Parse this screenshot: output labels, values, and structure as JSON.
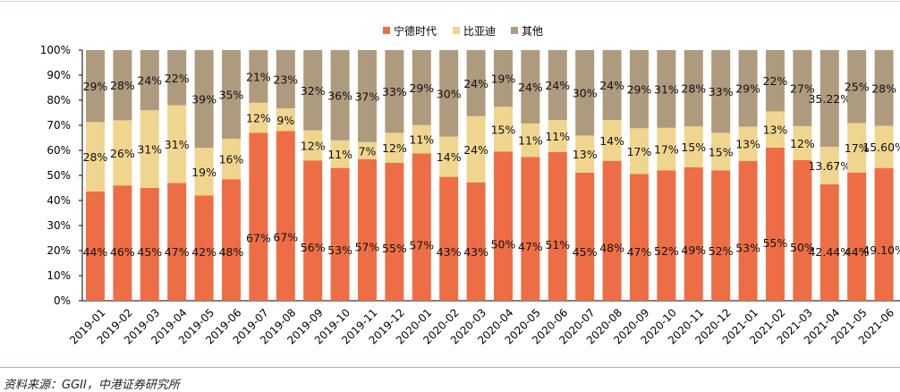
{
  "chart_data": {
    "type": "bar",
    "stacked": true,
    "categories": [
      "2019-01",
      "2019-02",
      "2019-03",
      "2019-04",
      "2019-05",
      "2019-06",
      "2019-07",
      "2019-08",
      "2019-09",
      "2019-10",
      "2019-11",
      "2019-12",
      "2020-01",
      "2020-02",
      "2020-03",
      "2020-04",
      "2020-05",
      "2020-06",
      "2020-07",
      "2020-08",
      "2020-09",
      "2020-10",
      "2020-11",
      "2020-12",
      "2021-01",
      "2021-02",
      "2021-03",
      "2021-04",
      "2021-05",
      "2021-06"
    ],
    "series": [
      {
        "name": "宁德时代",
        "color": "#ED6E45",
        "labels": [
          "44%",
          "46%",
          "45%",
          "47%",
          "42%",
          "48%",
          "67%",
          "67%",
          "56%",
          "53%",
          "57%",
          "55%",
          "57%",
          "43%",
          "43%",
          "50%",
          "47%",
          "51%",
          "45%",
          "48%",
          "47%",
          "52%",
          "49%",
          "52%",
          "53%",
          "55%",
          "50%",
          "42.44%",
          "44%",
          "49.10%"
        ],
        "values": [
          44,
          46,
          45,
          47,
          42,
          48,
          67,
          67,
          56,
          53,
          57,
          55,
          57,
          43,
          43,
          50,
          47,
          51,
          45,
          48,
          47,
          52,
          49,
          52,
          53,
          55,
          50,
          42.44,
          44,
          49.1
        ]
      },
      {
        "name": "比亚迪",
        "color": "#EFD58E",
        "labels": [
          "28%",
          "26%",
          "31%",
          "31%",
          "19%",
          "16%",
          "12%",
          "9%",
          "12%",
          "11%",
          "7%",
          "12%",
          "11%",
          "14%",
          "24%",
          "15%",
          "11%",
          "11%",
          "13%",
          "14%",
          "17%",
          "17%",
          "15%",
          "15%",
          "13%",
          "13%",
          "12%",
          "13.67%",
          "17%",
          "15.60%"
        ],
        "values": [
          28,
          26,
          31,
          31,
          19,
          16,
          12,
          9,
          12,
          11,
          7,
          12,
          11,
          14,
          24,
          15,
          11,
          11,
          13,
          14,
          17,
          17,
          15,
          15,
          13,
          13,
          12,
          13.67,
          17,
          15.6
        ]
      },
      {
        "name": "其他",
        "color": "#AE9A7D",
        "labels": [
          "29%",
          "28%",
          "24%",
          "22%",
          "39%",
          "35%",
          "21%",
          "23%",
          "32%",
          "36%",
          "37%",
          "33%",
          "29%",
          "30%",
          "24%",
          "19%",
          "24%",
          "24%",
          "30%",
          "24%",
          "29%",
          "31%",
          "28%",
          "33%",
          "29%",
          "22%",
          "27%",
          "35.22%",
          "25%",
          "28%"
        ],
        "values": [
          29,
          28,
          24,
          22,
          39,
          35,
          21,
          23,
          32,
          36,
          37,
          33,
          29,
          30,
          24,
          19,
          24,
          24,
          30,
          24,
          29,
          31,
          28,
          33,
          29,
          22,
          27,
          35.22,
          25,
          28
        ]
      }
    ],
    "yticks": [
      "0%",
      "10%",
      "20%",
      "30%",
      "40%",
      "50%",
      "60%",
      "70%",
      "80%",
      "90%",
      "100%"
    ],
    "ylim": [
      0,
      100
    ],
    "legend": "top-center",
    "grid": false
  },
  "source": "资料来源：GGII，中港证券研究所"
}
